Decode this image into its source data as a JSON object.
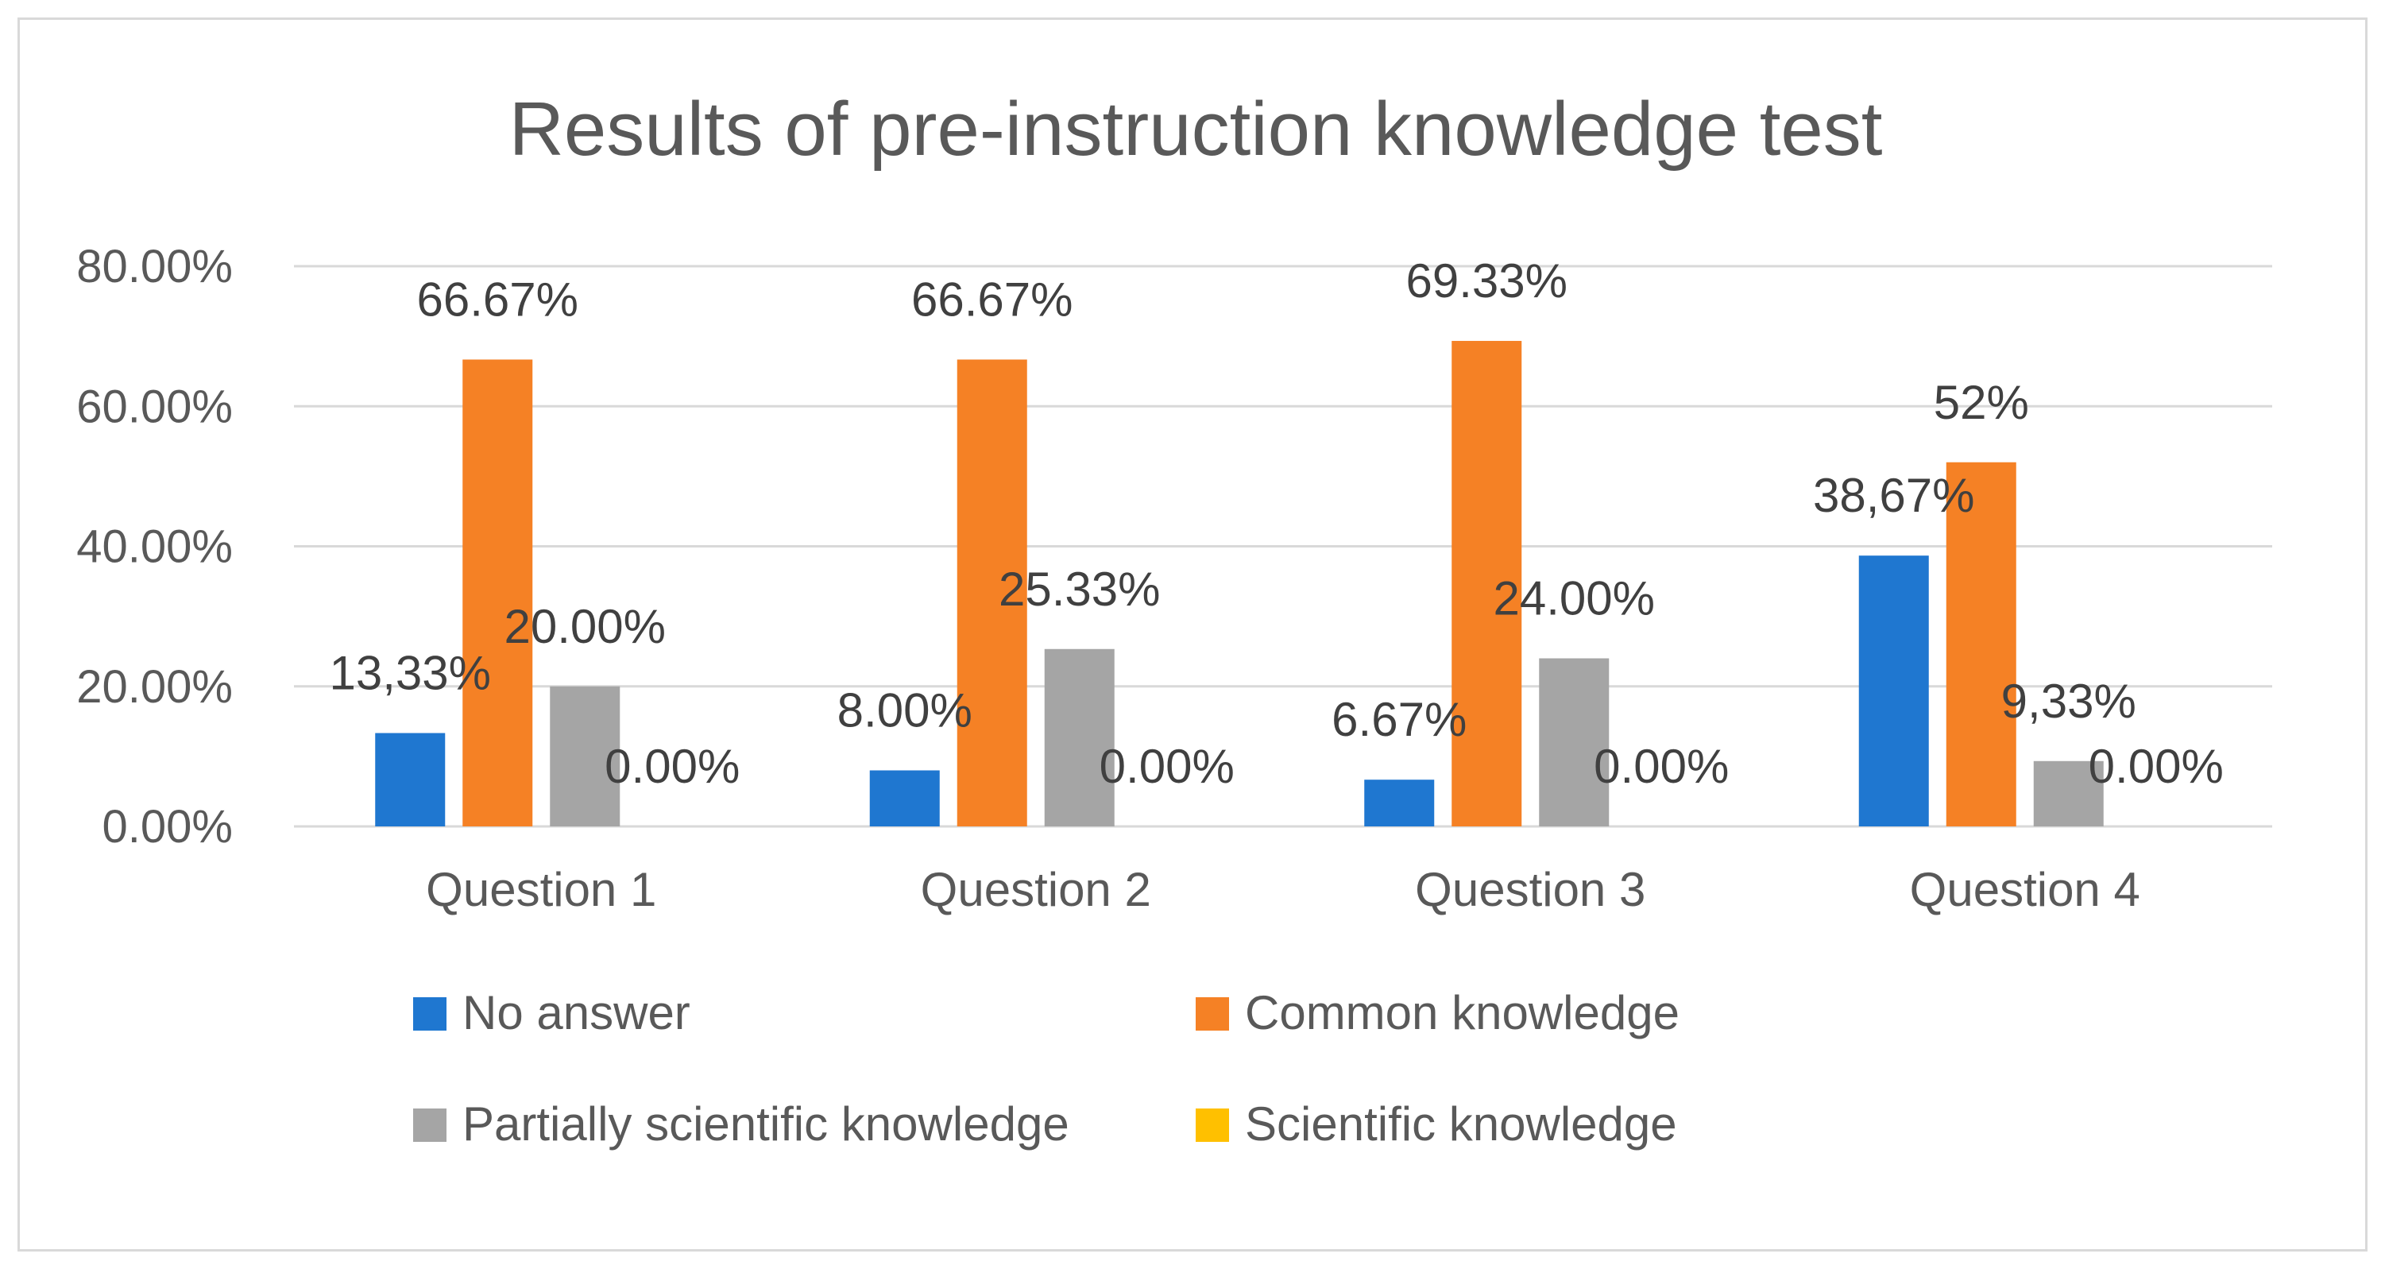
{
  "chart_data": {
    "type": "bar",
    "title": "Results of pre-instruction knowledge test",
    "categories": [
      "Question 1",
      "Question 2",
      "Question 3",
      "Question 4"
    ],
    "series": [
      {
        "name": "No answer",
        "color": "#1f77d0",
        "values": [
          13.33,
          8.0,
          6.67,
          38.67
        ],
        "labels": [
          "13,33%",
          "8.00%",
          "6.67%",
          "38,67%"
        ]
      },
      {
        "name": "Common knowledge",
        "color": "#f58125",
        "values": [
          66.67,
          66.67,
          69.33,
          52
        ],
        "labels": [
          "66.67%",
          "66.67%",
          "69.33%",
          "52%"
        ]
      },
      {
        "name": "Partially scientific knowledge",
        "color": "#a5a5a5",
        "values": [
          20.0,
          25.33,
          24.0,
          9.33
        ],
        "labels": [
          "20.00%",
          "25.33%",
          "24.00%",
          "9,33%"
        ]
      },
      {
        "name": "Scientific knowledge",
        "color": "#ffc000",
        "values": [
          0,
          0,
          0,
          0
        ],
        "labels": [
          "0.00%",
          "0.00%",
          "0.00%",
          "0.00%"
        ]
      }
    ],
    "ylim": [
      0,
      80
    ],
    "yticks": [
      0,
      20,
      40,
      60,
      80
    ],
    "ytick_labels": [
      "0.00%",
      "20.00%",
      "40.00%",
      "60.00%",
      "80.00%"
    ],
    "grid": true,
    "legend": "bottom"
  }
}
